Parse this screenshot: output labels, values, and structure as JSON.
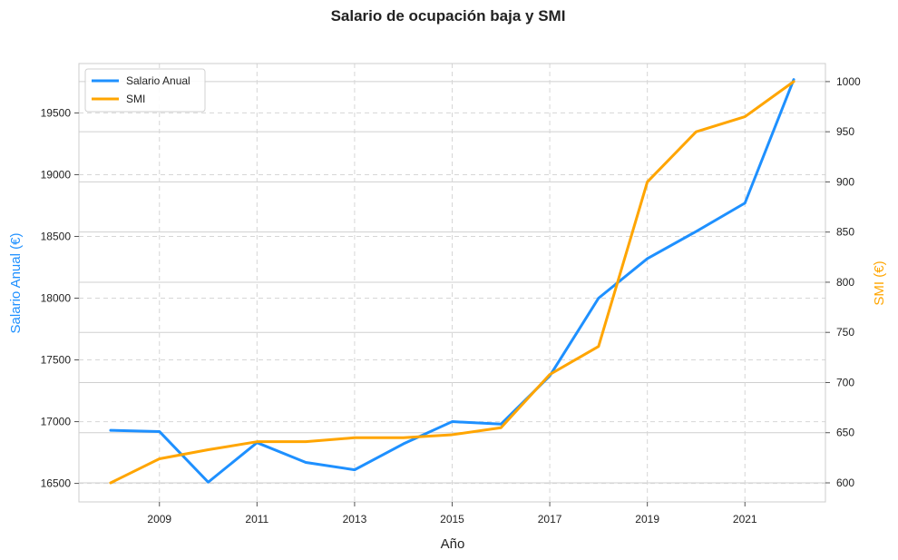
{
  "chart_data": {
    "type": "line",
    "title": "Salario de ocupación baja y SMI",
    "xlabel": "Año",
    "ylabel_left": "Salario Anual (€)",
    "ylabel_right": "SMI (€)",
    "x": [
      2008,
      2009,
      2010,
      2011,
      2012,
      2013,
      2014,
      2015,
      2016,
      2017,
      2018,
      2019,
      2020,
      2021,
      2022
    ],
    "x_ticks": [
      2009,
      2011,
      2013,
      2015,
      2017,
      2019,
      2021
    ],
    "xlim": [
      2007.35,
      2022.65
    ],
    "ylim_left": [
      16350,
      19900
    ],
    "ylim_right": [
      581,
      1018
    ],
    "yticks_left": [
      16500,
      17000,
      17500,
      18000,
      18500,
      19000,
      19500
    ],
    "yticks_right": [
      600,
      650,
      700,
      750,
      800,
      850,
      900,
      950,
      1000
    ],
    "series": [
      {
        "name": "Salario Anual",
        "axis": "left",
        "color": "#1e90ff",
        "values": [
          16930,
          16920,
          16510,
          16830,
          16670,
          16610,
          16820,
          17000,
          16980,
          17370,
          18000,
          18320,
          18540,
          18770,
          19770
        ]
      },
      {
        "name": "SMI",
        "axis": "right",
        "color": "#ffa500",
        "values": [
          600,
          624,
          633,
          641,
          641,
          645,
          645,
          648,
          655,
          708,
          736,
          900,
          950,
          965,
          1000
        ]
      }
    ],
    "grid": true,
    "legend_position": "top-left"
  }
}
